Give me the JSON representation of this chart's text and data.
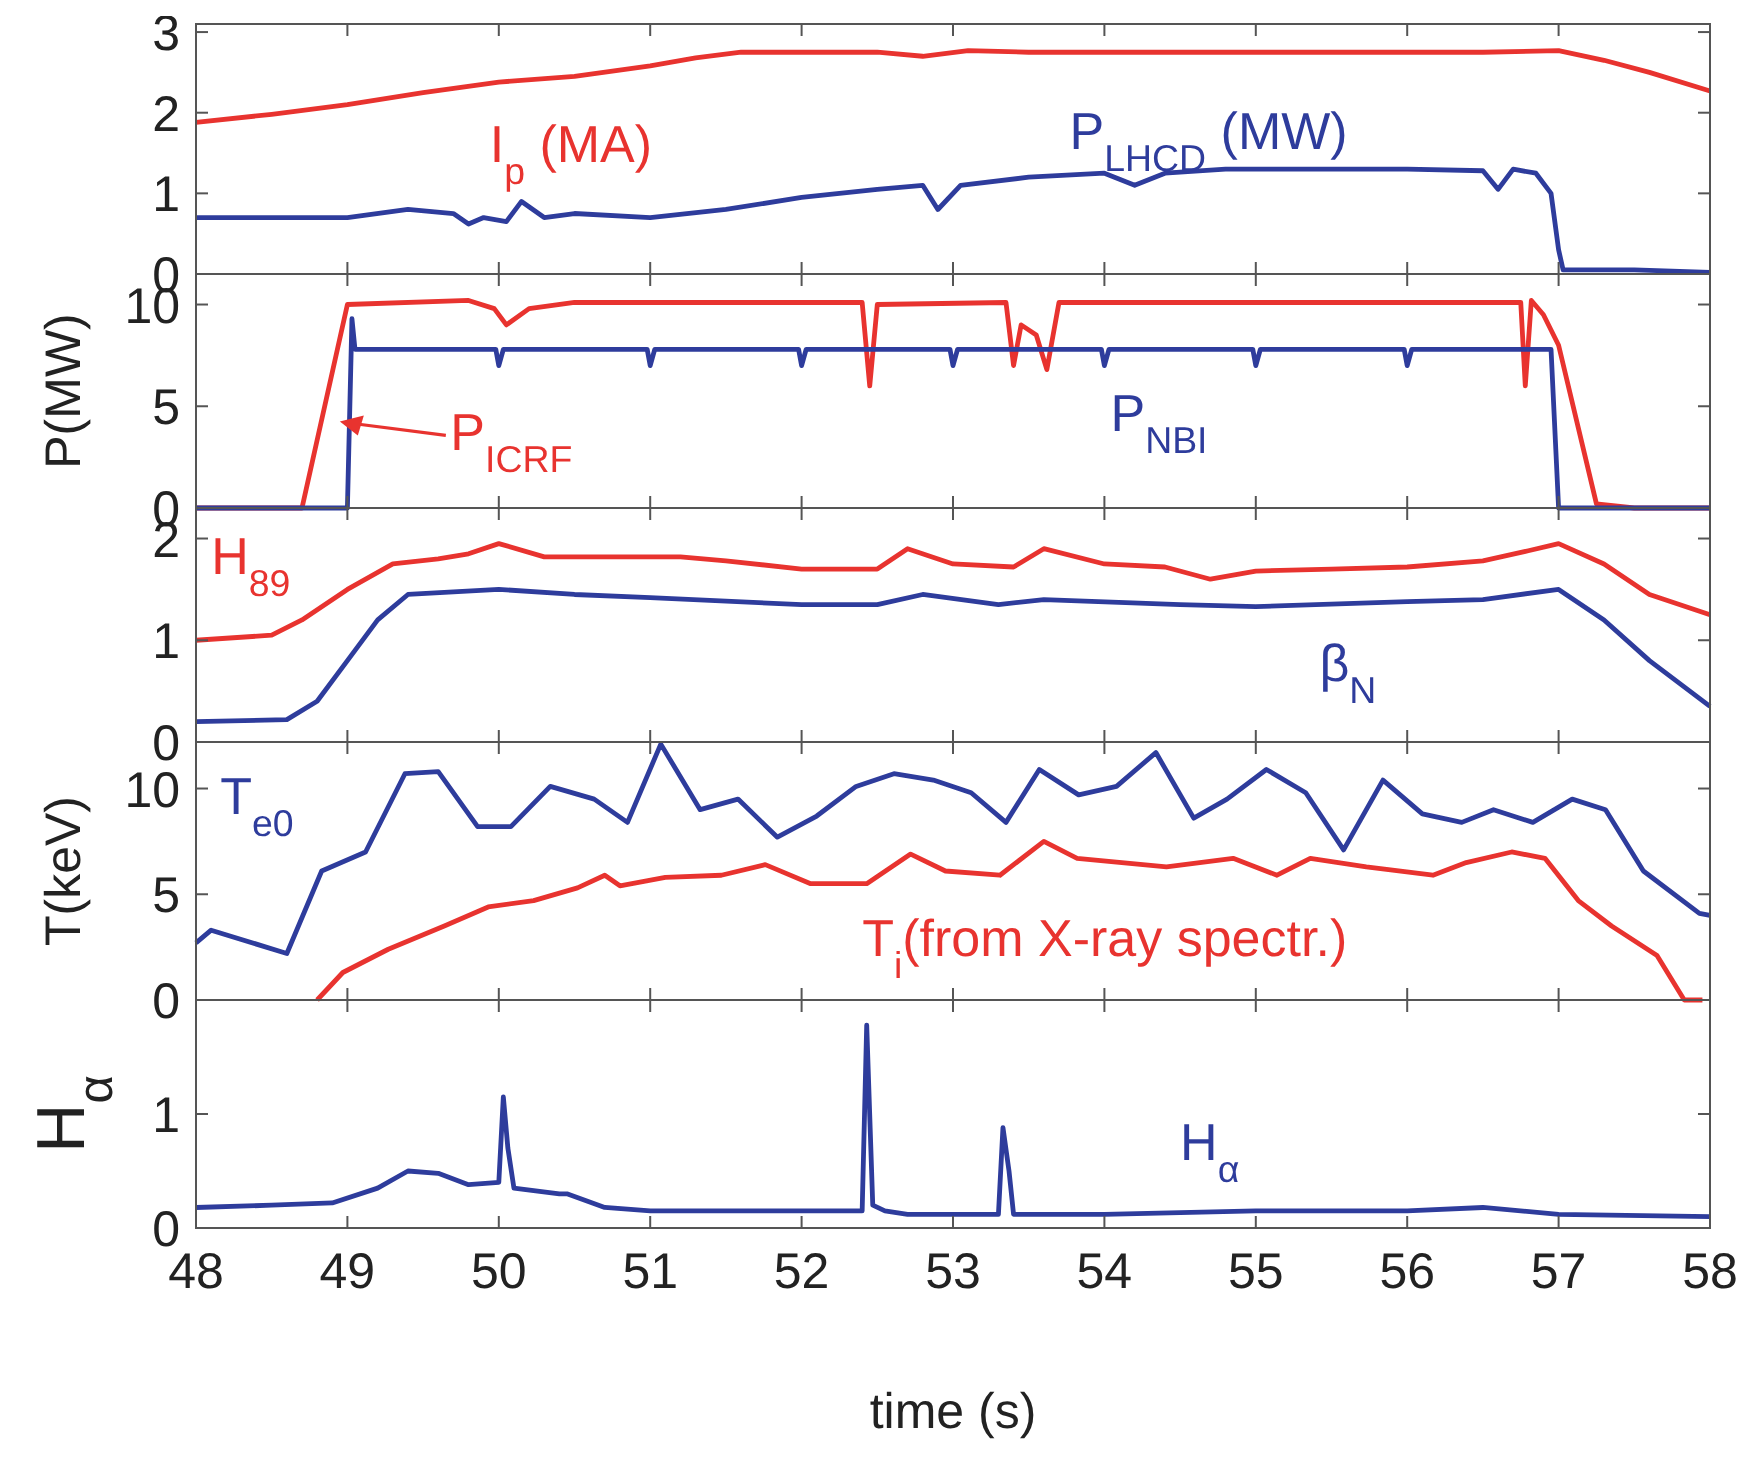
{
  "chart_data": [
    {
      "type": "line",
      "xlim": [
        48,
        58
      ],
      "xticks": [
        48,
        49,
        50,
        51,
        52,
        53,
        54,
        55,
        56,
        57,
        58
      ],
      "ylim": [
        0,
        3.1
      ],
      "yticks": [
        0,
        1,
        2,
        3
      ],
      "tick_labels": "y",
      "grid": false,
      "line_style": "solid",
      "series": [
        {
          "name": "I$_{p}$ (MA)",
          "color": "#e8332f",
          "x": [
            48,
            48.5,
            49,
            49.5,
            50,
            50.5,
            51,
            51.3,
            51.6,
            52,
            52.5,
            52.8,
            53.1,
            53.5,
            54,
            55,
            56,
            56.5,
            57,
            57.3,
            57.6,
            58
          ],
          "values": [
            1.88,
            1.98,
            2.1,
            2.25,
            2.38,
            2.45,
            2.58,
            2.68,
            2.75,
            2.75,
            2.75,
            2.7,
            2.77,
            2.75,
            2.75,
            2.75,
            2.75,
            2.75,
            2.77,
            2.65,
            2.5,
            2.27
          ]
        },
        {
          "name": "P$_{LHCD}$ (MW)",
          "color": "#2e3c9c",
          "x": [
            48,
            48.5,
            49,
            49.4,
            49.7,
            49.8,
            49.9,
            50.05,
            50.15,
            50.3,
            50.5,
            51,
            51.5,
            52,
            52.5,
            52.8,
            52.9,
            53.05,
            53.5,
            54,
            54.2,
            54.4,
            54.8,
            55.5,
            56,
            56.5,
            56.6,
            56.7,
            56.85,
            56.95,
            57,
            57.03,
            57.5,
            58
          ],
          "values": [
            0.7,
            0.7,
            0.7,
            0.8,
            0.75,
            0.62,
            0.7,
            0.65,
            0.9,
            0.7,
            0.75,
            0.7,
            0.8,
            0.95,
            1.05,
            1.1,
            0.8,
            1.1,
            1.2,
            1.25,
            1.1,
            1.25,
            1.3,
            1.3,
            1.3,
            1.28,
            1.05,
            1.3,
            1.25,
            1,
            0.3,
            0.05,
            0.05,
            0.02
          ]
        }
      ]
    },
    {
      "type": "line",
      "ylabel": "P(MW)",
      "xlim": [
        48,
        58
      ],
      "xticks": [
        48,
        49,
        50,
        51,
        52,
        53,
        54,
        55,
        56,
        57,
        58
      ],
      "ylim": [
        0,
        11.5
      ],
      "yticks": [
        0,
        5,
        10
      ],
      "tick_labels": "y",
      "grid": false,
      "line_style": "solid",
      "series": [
        {
          "name": "P$_{ICRF}$",
          "color": "#e8332f",
          "x": [
            48,
            48.7,
            49,
            49.8,
            49.97,
            50.05,
            50.2,
            50.5,
            52.4,
            52.45,
            52.5,
            53.35,
            53.4,
            53.45,
            53.55,
            53.62,
            53.7,
            56.75,
            56.78,
            56.82,
            56.9,
            57,
            57.25,
            57.5,
            58
          ],
          "values": [
            0,
            0,
            10,
            10.2,
            9.8,
            9,
            9.8,
            10.1,
            10.1,
            6,
            10,
            10.1,
            7,
            9,
            8.5,
            6.8,
            10.1,
            10.1,
            6,
            10.2,
            9.5,
            8,
            0.2,
            0,
            0
          ]
        },
        {
          "name": "P$_{NBI}$",
          "color": "#2e3c9c",
          "x": [
            48,
            49,
            49.03,
            49.05,
            49.98,
            50,
            50.03,
            50.98,
            51,
            51.03,
            51.98,
            52,
            52.03,
            52.98,
            53,
            53.03,
            53.98,
            54,
            54.03,
            54.98,
            55,
            55.03,
            55.98,
            56,
            56.03,
            56.95,
            57,
            58
          ],
          "values": [
            0,
            0,
            9.3,
            7.8,
            7.8,
            7,
            7.8,
            7.8,
            7,
            7.8,
            7.8,
            7,
            7.8,
            7.8,
            7,
            7.8,
            7.8,
            7,
            7.8,
            7.8,
            7,
            7.8,
            7.8,
            7,
            7.8,
            7.8,
            0,
            0
          ]
        }
      ]
    },
    {
      "type": "line",
      "xlim": [
        48,
        58
      ],
      "xticks": [
        48,
        49,
        50,
        51,
        52,
        53,
        54,
        55,
        56,
        57,
        58
      ],
      "ylim": [
        0,
        2.3
      ],
      "yticks": [
        0,
        1,
        2
      ],
      "tick_labels": "y",
      "grid": false,
      "line_style": "solid",
      "series": [
        {
          "name": "H$_{89}$",
          "color": "#e8332f",
          "x": [
            48,
            48.5,
            48.7,
            49,
            49.3,
            49.6,
            49.8,
            50,
            50.3,
            50.8,
            51.2,
            51.5,
            52,
            52.5,
            52.7,
            53,
            53.4,
            53.6,
            54,
            54.4,
            54.7,
            55,
            55.5,
            56,
            56.5,
            56.8,
            57,
            57.3,
            57.6,
            58
          ],
          "values": [
            1,
            1.05,
            1.2,
            1.5,
            1.75,
            1.8,
            1.85,
            1.95,
            1.82,
            1.82,
            1.82,
            1.78,
            1.7,
            1.7,
            1.9,
            1.75,
            1.72,
            1.9,
            1.75,
            1.72,
            1.6,
            1.68,
            1.7,
            1.72,
            1.78,
            1.88,
            1.95,
            1.75,
            1.45,
            1.25
          ]
        },
        {
          "name": "β$_{N}$",
          "color": "#2e3c9c",
          "x": [
            48,
            48.6,
            48.8,
            49,
            49.2,
            49.4,
            50,
            50.5,
            51,
            52,
            52.5,
            52.8,
            53.3,
            53.6,
            54.5,
            55,
            56,
            56.5,
            57,
            57.3,
            57.6,
            58
          ],
          "values": [
            0.2,
            0.22,
            0.4,
            0.8,
            1.2,
            1.45,
            1.5,
            1.45,
            1.42,
            1.35,
            1.35,
            1.45,
            1.35,
            1.4,
            1.35,
            1.33,
            1.38,
            1.4,
            1.5,
            1.2,
            0.8,
            0.35
          ]
        }
      ]
    },
    {
      "type": "line",
      "ylabel": "T(keV)",
      "xlim": [
        48,
        58
      ],
      "xticks": [
        48,
        49,
        50,
        51,
        52,
        53,
        54,
        55,
        56,
        57,
        58
      ],
      "ylim": [
        0,
        12.2
      ],
      "yticks": [
        0,
        5,
        10
      ],
      "tick_labels": "y",
      "grid": false,
      "line_style": "solid",
      "series": [
        {
          "name": "T$_{e0}$",
          "color": "#2e3c9c",
          "x": [
            48,
            48.1,
            48.6,
            48.83,
            49.12,
            49.38,
            49.6,
            49.86,
            50.08,
            50.34,
            50.63,
            50.85,
            51.07,
            51.33,
            51.58,
            51.84,
            52.1,
            52.36,
            52.61,
            52.87,
            53.12,
            53.35,
            53.57,
            53.83,
            54.08,
            54.34,
            54.59,
            54.81,
            55.07,
            55.33,
            55.58,
            55.84,
            56.1,
            56.36,
            56.57,
            56.83,
            57.09,
            57.31,
            57.56,
            57.93,
            58
          ],
          "values": [
            2.7,
            3.3,
            2.2,
            6.1,
            7,
            10.7,
            10.8,
            8.2,
            8.2,
            10.1,
            9.5,
            8.4,
            12.1,
            9,
            9.5,
            7.7,
            8.7,
            10.1,
            10.7,
            10.4,
            9.8,
            8.4,
            10.9,
            9.7,
            10.1,
            11.7,
            8.6,
            9.5,
            10.9,
            9.8,
            7.1,
            10.4,
            8.8,
            8.4,
            9,
            8.4,
            9.5,
            9,
            6.1,
            4.1,
            4
          ]
        },
        {
          "name": "T$_{i}$(from X-ray spectr.)",
          "color": "#e8332f",
          "x": [
            48.8,
            48.97,
            49.27,
            49.64,
            49.93,
            50.23,
            50.52,
            50.7,
            50.8,
            51.1,
            51.47,
            51.76,
            52.06,
            52.43,
            52.72,
            52.95,
            53.31,
            53.6,
            53.82,
            54.41,
            54.85,
            55.14,
            55.36,
            55.73,
            56.17,
            56.39,
            56.69,
            56.91,
            57.13,
            57.35,
            57.65,
            57.83,
            57.95
          ],
          "values": [
            0,
            1.3,
            2.4,
            3.5,
            4.4,
            4.7,
            5.3,
            5.9,
            5.4,
            5.8,
            5.9,
            6.4,
            5.5,
            5.5,
            6.9,
            6.1,
            5.9,
            7.5,
            6.7,
            6.3,
            6.7,
            5.9,
            6.7,
            6.3,
            5.9,
            6.5,
            7,
            6.7,
            4.7,
            3.5,
            2.1,
            0,
            0
          ]
        }
      ]
    },
    {
      "type": "line",
      "ylabel": "H$_{α}$",
      "xlabel": "time (s)",
      "xlim": [
        48,
        58
      ],
      "xticks": [
        48,
        49,
        50,
        51,
        52,
        53,
        54,
        55,
        56,
        57,
        58
      ],
      "ylim": [
        0,
        2
      ],
      "yticks": [
        0,
        1
      ],
      "grid": false,
      "line_style": "solid",
      "series": [
        {
          "name": "H$_{α}$",
          "color": "#2e3c9c",
          "x": [
            48,
            48.5,
            48.9,
            49.2,
            49.4,
            49.6,
            49.8,
            50,
            50.03,
            50.06,
            50.1,
            50.4,
            50.45,
            50.7,
            51,
            52.4,
            52.43,
            52.47,
            52.55,
            52.7,
            53.3,
            53.33,
            53.37,
            53.4,
            54,
            55,
            56,
            56.5,
            57,
            58
          ],
          "values": [
            0.18,
            0.2,
            0.22,
            0.35,
            0.5,
            0.48,
            0.38,
            0.4,
            1.15,
            0.7,
            0.35,
            0.3,
            0.3,
            0.18,
            0.15,
            0.15,
            1.78,
            0.2,
            0.15,
            0.12,
            0.12,
            0.88,
            0.5,
            0.12,
            0.12,
            0.15,
            0.15,
            0.18,
            0.12,
            0.1
          ]
        }
      ]
    }
  ]
}
